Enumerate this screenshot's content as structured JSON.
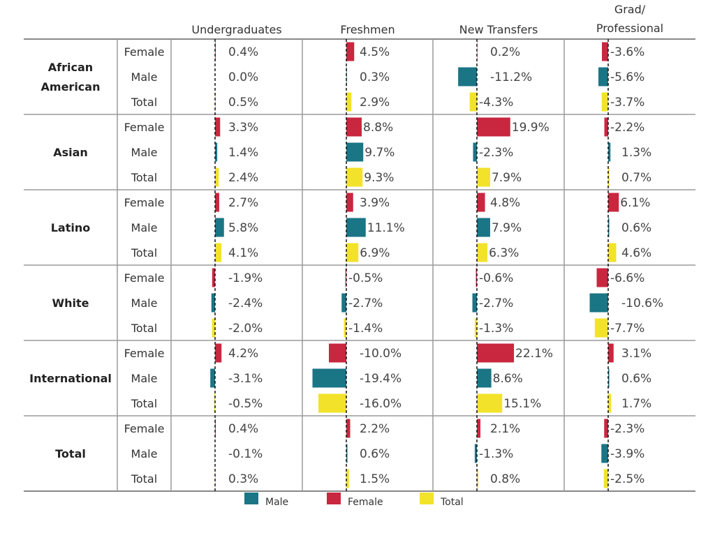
{
  "chart_data": {
    "type": "bar",
    "orientation": "horizontal",
    "columns": [
      "Undergraduates",
      "Freshmen",
      "New Transfers",
      "Grad/ Professional"
    ],
    "subgroups": [
      "Female",
      "Male",
      "Total"
    ],
    "groups": [
      {
        "name": "African American",
        "rows": [
          {
            "sub": "Female",
            "values": [
              0.4,
              4.5,
              0.2,
              -3.6
            ],
            "labels": [
              "0.4%",
              "4.5%",
              "0.2%",
              "-3.6%"
            ]
          },
          {
            "sub": "Male",
            "values": [
              0.0,
              0.3,
              -11.2,
              -5.6
            ],
            "labels": [
              "0.0%",
              "0.3%",
              "-11.2%",
              "-5.6%"
            ]
          },
          {
            "sub": "Total",
            "values": [
              0.5,
              2.9,
              -4.3,
              -3.7
            ],
            "labels": [
              "0.5%",
              "2.9%",
              "-4.3%",
              "-3.7%"
            ]
          }
        ]
      },
      {
        "name": "Asian",
        "rows": [
          {
            "sub": "Female",
            "values": [
              3.3,
              8.8,
              19.9,
              -2.2
            ],
            "labels": [
              "3.3%",
              "8.8%",
              "19.9%",
              "-2.2%"
            ]
          },
          {
            "sub": "Male",
            "values": [
              1.4,
              9.7,
              -2.3,
              1.3
            ],
            "labels": [
              "1.4%",
              "9.7%",
              "-2.3%",
              "1.3%"
            ]
          },
          {
            "sub": "Total",
            "values": [
              2.4,
              9.3,
              7.9,
              0.7
            ],
            "labels": [
              "2.4%",
              "9.3%",
              "7.9%",
              "0.7%"
            ]
          }
        ]
      },
      {
        "name": "Latino",
        "rows": [
          {
            "sub": "Female",
            "values": [
              2.7,
              3.9,
              4.8,
              6.1
            ],
            "labels": [
              "2.7%",
              "3.9%",
              "4.8%",
              "6.1%"
            ]
          },
          {
            "sub": "Male",
            "values": [
              5.8,
              11.1,
              7.9,
              0.6
            ],
            "labels": [
              "5.8%",
              "11.1%",
              "7.9%",
              "0.6%"
            ]
          },
          {
            "sub": "Total",
            "values": [
              4.1,
              6.9,
              6.3,
              4.6
            ],
            "labels": [
              "4.1%",
              "6.9%",
              "6.3%",
              "4.6%"
            ]
          }
        ]
      },
      {
        "name": "White",
        "rows": [
          {
            "sub": "Female",
            "values": [
              -1.9,
              -0.5,
              -0.6,
              -6.6
            ],
            "labels": [
              "-1.9%",
              "-0.5%",
              "-0.6%",
              "-6.6%"
            ]
          },
          {
            "sub": "Male",
            "values": [
              -2.4,
              -2.7,
              -2.7,
              -10.6
            ],
            "labels": [
              "-2.4%",
              "-2.7%",
              "-2.7%",
              "-10.6%"
            ]
          },
          {
            "sub": "Total",
            "values": [
              -2.0,
              -1.4,
              -1.3,
              -7.7
            ],
            "labels": [
              "-2.0%",
              "-1.4%",
              "-1.3%",
              "-7.7%"
            ]
          }
        ]
      },
      {
        "name": "International",
        "rows": [
          {
            "sub": "Female",
            "values": [
              4.2,
              -10.0,
              22.1,
              3.1
            ],
            "labels": [
              "4.2%",
              "-10.0%",
              "22.1%",
              "3.1%"
            ]
          },
          {
            "sub": "Male",
            "values": [
              -3.1,
              -19.4,
              8.6,
              0.6
            ],
            "labels": [
              "-3.1%",
              "-19.4%",
              "8.6%",
              "0.6%"
            ]
          },
          {
            "sub": "Total",
            "values": [
              -0.5,
              -16.0,
              15.1,
              1.7
            ],
            "labels": [
              "-0.5%",
              "-16.0%",
              "15.1%",
              "1.7%"
            ]
          }
        ]
      },
      {
        "name": "Total",
        "rows": [
          {
            "sub": "Female",
            "values": [
              0.4,
              2.2,
              2.1,
              -2.3
            ],
            "labels": [
              "0.4%",
              "2.2%",
              "2.1%",
              "-2.3%"
            ]
          },
          {
            "sub": "Male",
            "values": [
              -0.1,
              0.6,
              -1.3,
              -3.9
            ],
            "labels": [
              "-0.1%",
              "0.6%",
              "-1.3%",
              "-3.9%"
            ]
          },
          {
            "sub": "Total",
            "values": [
              0.3,
              1.5,
              0.8,
              -2.5
            ],
            "labels": [
              "0.3%",
              "1.5%",
              "0.8%",
              "-2.5%"
            ]
          }
        ]
      }
    ],
    "legend": [
      {
        "name": "Male",
        "color": "#1a7585"
      },
      {
        "name": "Female",
        "color": "#c8273f"
      },
      {
        "name": "Total",
        "color": "#f2e22a"
      }
    ],
    "zero_line": "dashed",
    "unit": "%"
  }
}
